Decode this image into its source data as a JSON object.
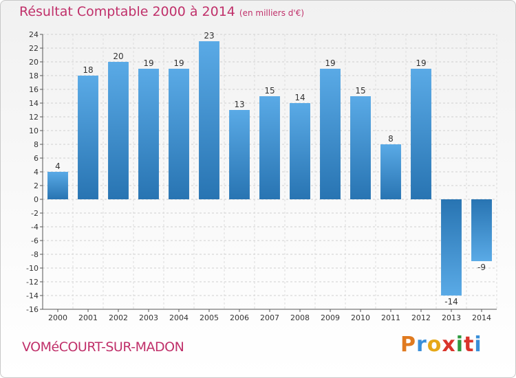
{
  "header": {
    "title": "Résultat Comptable 2000 à 2014",
    "subtitle": "(en milliers d'€)"
  },
  "footer": {
    "commune": "VOMéCOURT-SUR-MADON",
    "brand": [
      "P",
      "r",
      "o",
      "x",
      "i",
      "t",
      "i"
    ],
    "brand_colors": [
      "#e07a1f",
      "#3a8fd9",
      "#e6a817",
      "#d9342b",
      "#2e9a3f",
      "#d9342b",
      "#3a8fd9"
    ]
  },
  "colors": {
    "bar_light": "#5aaae6",
    "bar_dark": "#2874b2"
  },
  "chart_data": {
    "type": "bar",
    "title": "Résultat Comptable 2000 à 2014",
    "subtitle": "(en milliers d'€)",
    "xlabel": "",
    "ylabel": "",
    "categories": [
      "2000",
      "2001",
      "2002",
      "2003",
      "2004",
      "2005",
      "2006",
      "2007",
      "2008",
      "2009",
      "2010",
      "2011",
      "2012",
      "2013",
      "2014"
    ],
    "values": [
      4,
      18,
      20,
      19,
      19,
      23,
      13,
      15,
      14,
      19,
      15,
      8,
      19,
      -14,
      -9
    ],
    "ylim": [
      -16,
      24
    ],
    "yticks": [
      -16,
      -14,
      -12,
      -10,
      -8,
      -6,
      -4,
      -2,
      0,
      2,
      4,
      6,
      8,
      10,
      12,
      14,
      16,
      18,
      20,
      22,
      24
    ],
    "grid": true,
    "legend": "none"
  }
}
